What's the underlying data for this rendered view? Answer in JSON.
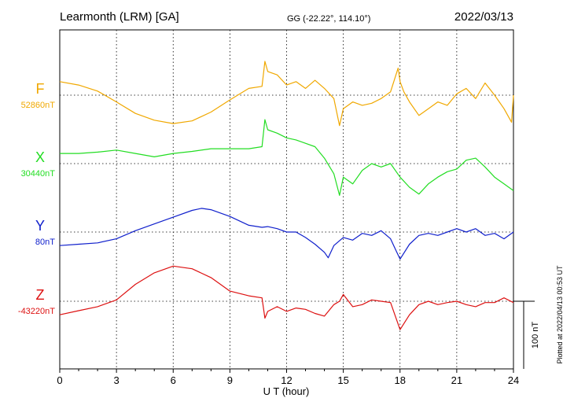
{
  "header": {
    "station": "Learmonth (LRM)  [GA]",
    "coords": "GG (-22.22°, 114.10°)",
    "date": "2022/03/13"
  },
  "footer": {
    "plotted": "Plotted at 2022/04/13 00:53 UT"
  },
  "chart_data": {
    "type": "line",
    "xlabel": "U T (hour)",
    "xlim": [
      0,
      24
    ],
    "xticks": [
      "0",
      "3",
      "6",
      "9",
      "12",
      "15",
      "18",
      "21",
      "24"
    ],
    "scale_bar": {
      "label": "100 nT",
      "value_nT": 100
    },
    "series": [
      {
        "name": "F",
        "baseline_label": "52860nT",
        "baseline_nT": 52860,
        "color": "#f0a800",
        "x": [
          0,
          1,
          2,
          3,
          4,
          5,
          6,
          7,
          8,
          9,
          10,
          10.7,
          10.85,
          11,
          11.5,
          12,
          12.5,
          13,
          13.5,
          14,
          14.5,
          14.8,
          15,
          15.5,
          16,
          16.5,
          17,
          17.5,
          17.9,
          18,
          18.2,
          18.5,
          19,
          19.5,
          20,
          20.5,
          21,
          21.5,
          22,
          22.5,
          23,
          23.5,
          23.9,
          24
        ],
        "y": [
          52880,
          52875,
          52866,
          52850,
          52833,
          52823,
          52818,
          52822,
          52835,
          52853,
          52870,
          52873,
          52910,
          52895,
          52890,
          52875,
          52880,
          52870,
          52882,
          52870,
          52855,
          52815,
          52840,
          52850,
          52845,
          52848,
          52855,
          52865,
          52900,
          52880,
          52865,
          52850,
          52830,
          52840,
          52850,
          52845,
          52862,
          52870,
          52855,
          52878,
          52860,
          52840,
          52820,
          52860
        ]
      },
      {
        "name": "X",
        "baseline_label": "30440nT",
        "baseline_nT": 30440,
        "color": "#22dd22",
        "x": [
          0,
          1,
          2,
          3,
          4,
          5,
          6,
          7,
          8,
          9,
          10,
          10.7,
          10.85,
          11,
          11.5,
          12,
          12.5,
          13,
          13.5,
          14,
          14.5,
          14.8,
          15,
          15.5,
          16,
          16.5,
          17,
          17.5,
          18,
          18.5,
          19,
          19.5,
          20,
          20.5,
          21,
          21.5,
          22,
          22.5,
          23,
          23.5,
          24
        ],
        "y": [
          30455,
          30455,
          30457,
          30460,
          30455,
          30450,
          30455,
          30458,
          30462,
          30462,
          30462,
          30465,
          30505,
          30490,
          30485,
          30478,
          30475,
          30470,
          30465,
          30448,
          30425,
          30393,
          30420,
          30410,
          30430,
          30440,
          30435,
          30440,
          30420,
          30405,
          30395,
          30410,
          30420,
          30428,
          30432,
          30445,
          30448,
          30435,
          30420,
          30410,
          30400
        ]
      },
      {
        "name": "Y",
        "baseline_label": "80nT",
        "baseline_nT": 80,
        "color": "#1020cc",
        "x": [
          0,
          1,
          2,
          3,
          4,
          5,
          6,
          7,
          7.5,
          8,
          9,
          10,
          10.7,
          11,
          11.5,
          12,
          12.5,
          13,
          13.5,
          14,
          14.2,
          14.5,
          15,
          15.5,
          16,
          16.5,
          17,
          17.5,
          17.8,
          18,
          18.5,
          19,
          19.5,
          20,
          20.5,
          21,
          21.5,
          22,
          22.5,
          23,
          23.5,
          24
        ],
        "y": [
          60,
          62,
          64,
          70,
          82,
          92,
          102,
          112,
          115,
          113,
          103,
          90,
          87,
          88,
          85,
          80,
          80,
          72,
          62,
          50,
          42,
          60,
          72,
          68,
          78,
          75,
          82,
          70,
          52,
          40,
          62,
          75,
          78,
          75,
          80,
          85,
          80,
          85,
          75,
          78,
          70,
          80
        ]
      },
      {
        "name": "Z",
        "baseline_label": "-43220nT",
        "baseline_nT": -43220,
        "color": "#dd1111",
        "x": [
          0,
          1,
          2,
          3,
          4,
          5,
          6,
          7,
          8,
          9,
          10,
          10.7,
          10.85,
          11,
          11.5,
          12,
          12.5,
          13,
          13.5,
          14,
          14.5,
          14.8,
          15,
          15.5,
          16,
          16.5,
          17,
          17.5,
          18,
          18.5,
          19,
          19.5,
          20,
          20.5,
          21,
          21.5,
          22,
          22.5,
          23,
          23.5,
          24
        ],
        "y": [
          -43240,
          -43234,
          -43228,
          -43218,
          -43195,
          -43178,
          -43168,
          -43172,
          -43185,
          -43205,
          -43212,
          -43215,
          -43245,
          -43235,
          -43228,
          -43235,
          -43230,
          -43232,
          -43238,
          -43242,
          -43225,
          -43220,
          -43210,
          -43228,
          -43225,
          -43218,
          -43220,
          -43222,
          -43262,
          -43240,
          -43225,
          -43220,
          -43225,
          -43222,
          -43220,
          -43225,
          -43228,
          -43222,
          -43222,
          -43215,
          -43222
        ]
      }
    ]
  }
}
